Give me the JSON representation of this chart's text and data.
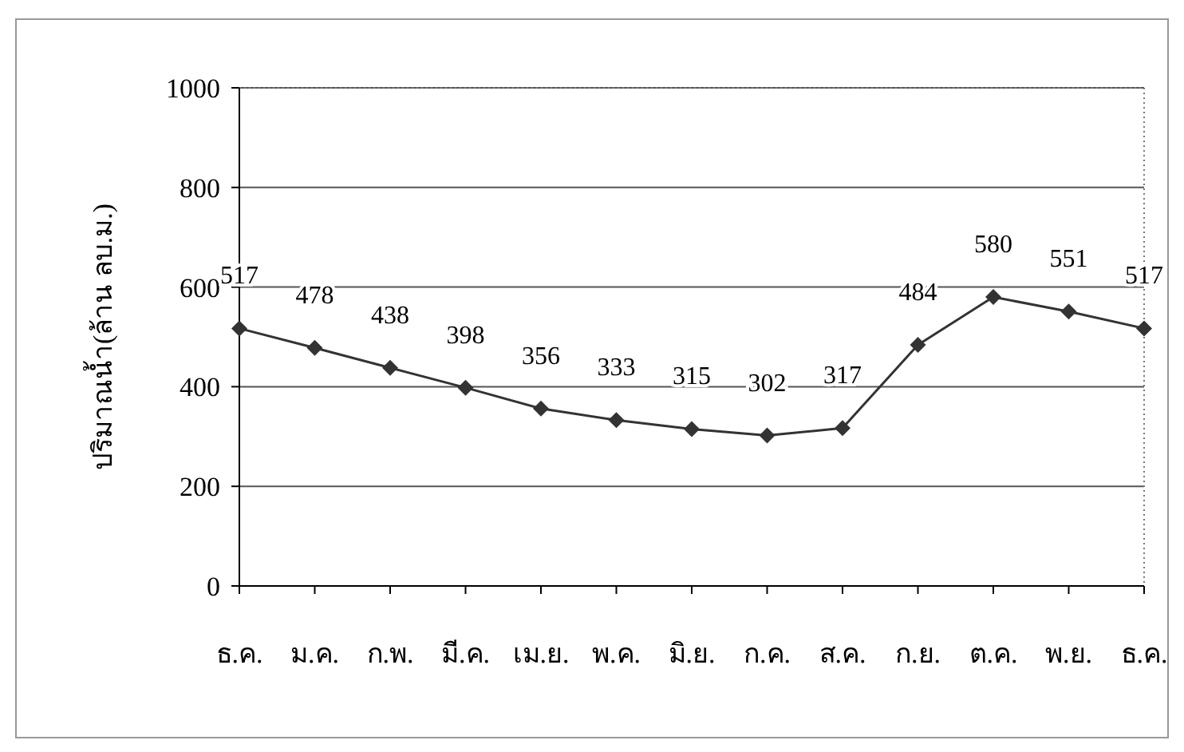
{
  "chart_data": {
    "type": "line",
    "ylabel": "ปริมาณน้ำ(ล้าน ลบ.ม.)",
    "categories": [
      "ธ.ค.",
      "ม.ค.",
      "ก.พ.",
      "มี.ค.",
      "เม.ย.",
      "พ.ค.",
      "มิ.ย.",
      "ก.ค.",
      "ส.ค.",
      "ก.ย.",
      "ต.ค.",
      "พ.ย.",
      "ธ.ค."
    ],
    "series": [
      {
        "color": "#333333",
        "values": [
          517,
          478,
          438,
          398,
          356,
          333,
          315,
          302,
          317,
          484,
          580,
          551,
          517
        ]
      }
    ],
    "ylim": [
      0,
      1000
    ],
    "yticks": [
      0,
      200,
      400,
      600,
      800,
      1000
    ],
    "grid": "y",
    "marker": "diamond",
    "line_style": "solid",
    "data_labels": true
  }
}
